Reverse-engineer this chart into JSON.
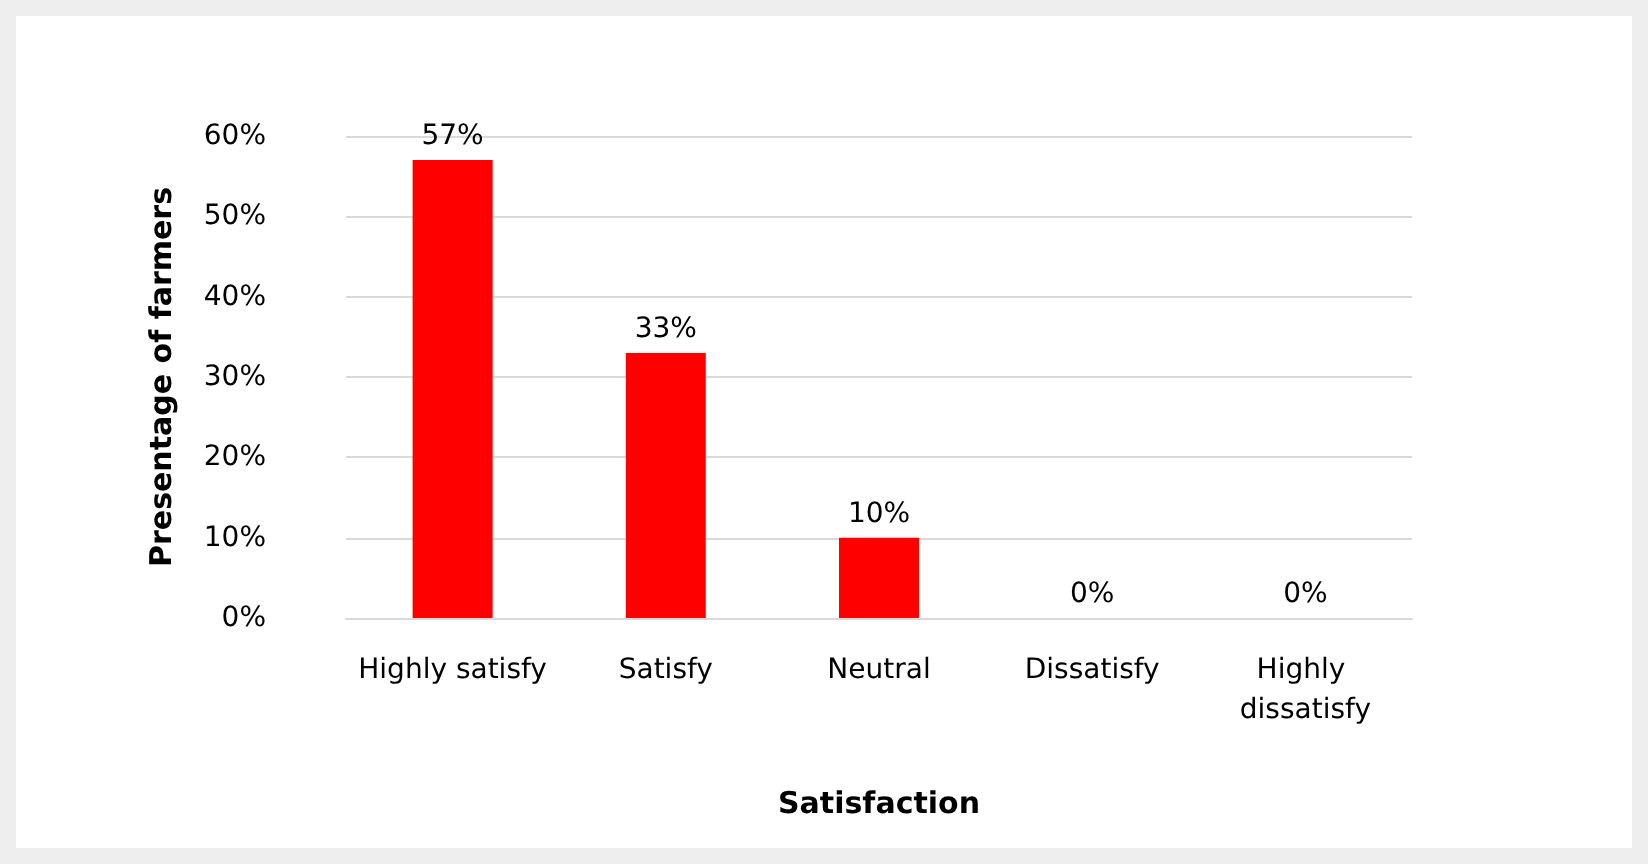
{
  "chart_data": {
    "type": "bar",
    "xlabel": "Satisfaction",
    "ylabel": "Presentage of farmers",
    "categories": [
      "Highly satisfy",
      "Satisfy",
      "Neutral",
      "Dissatisfy",
      "Highly dissatisfy"
    ],
    "values": [
      57,
      33,
      10,
      0,
      0
    ],
    "value_labels": [
      "57%",
      "33%",
      "10%",
      "0%",
      "0%"
    ],
    "color": "#ff0000",
    "ylim": [
      0,
      60
    ],
    "yticks": [
      {
        "value": 0,
        "label": "0%"
      },
      {
        "value": 10,
        "label": "10%"
      },
      {
        "value": 20,
        "label": "20%"
      },
      {
        "value": 30,
        "label": "30%"
      },
      {
        "value": 40,
        "label": "40%"
      },
      {
        "value": 50,
        "label": "50%"
      },
      {
        "value": 60,
        "label": "60%"
      }
    ],
    "grid": "y"
  }
}
